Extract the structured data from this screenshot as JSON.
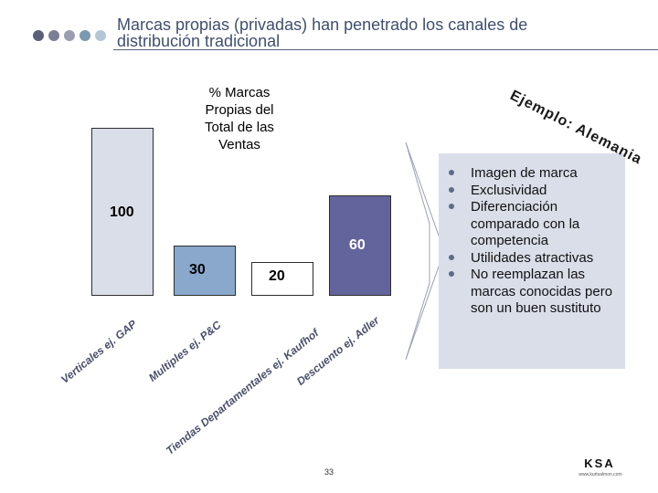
{
  "header": {
    "title_line1": "Marcas propias (privadas) han penetrado los canales de",
    "title_line2": "distribución tradicional",
    "dot_colors": [
      "#5a5f7a",
      "#7b7f96",
      "#9a9eb0",
      "#7c98b0",
      "#b4c6d6"
    ]
  },
  "chart_data": {
    "type": "bar",
    "title_lines": [
      "% Marcas",
      "Propias del",
      "Total de las",
      "Ventas"
    ],
    "categories": [
      {
        "label": "Verticales ej. GAP",
        "value": 100,
        "value_label": "100",
        "color": "#d9dee9"
      },
      {
        "label": "Multiples ej. P&C",
        "value": 30,
        "value_label": "30",
        "color": "#8aa7cc"
      },
      {
        "label": "Tiendas Departamentales ej. Kaufhof",
        "value": 20,
        "value_label": "20",
        "color": "#ffffff"
      },
      {
        "label": "Descuento ej. Adler",
        "value": 60,
        "value_label": "60",
        "color": "#64649c"
      }
    ],
    "ylim": [
      0,
      100
    ]
  },
  "example_label": "Ejemplo: Alemania",
  "panel": {
    "bullets": [
      "Imagen de marca",
      "Exclusividad",
      "Diferenciación comparado con la competencia",
      "Utilidades atractivas",
      "No reemplazan las marcas conocidas pero son un buen sustituto"
    ],
    "color": "#d9dee9"
  },
  "footer": {
    "page_number": "33",
    "logo_text": "KSA",
    "logo_subtext": "www.kurtsalmon.com"
  }
}
